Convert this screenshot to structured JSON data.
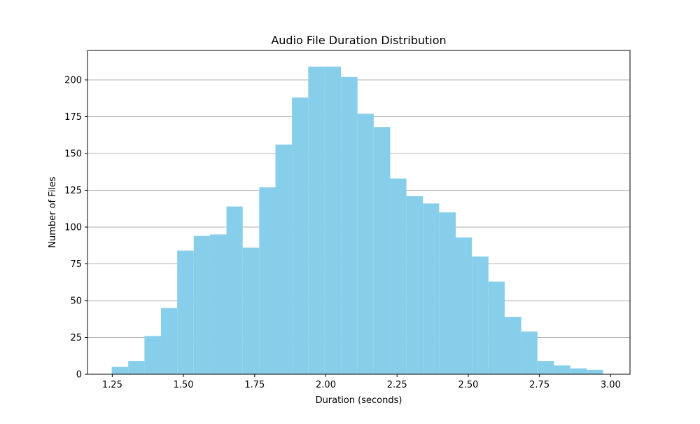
{
  "chart_data": {
    "type": "bar",
    "title": "Audio File Duration Distribution",
    "xlabel": "Duration (seconds)",
    "ylabel": "Number of Files",
    "xlim": [
      1.163,
      3.068
    ],
    "ylim": [
      0,
      220
    ],
    "x_ticks": [
      1.25,
      1.5,
      1.75,
      2.0,
      2.25,
      2.5,
      2.75,
      3.0
    ],
    "x_tick_labels": [
      "1.25",
      "1.50",
      "1.75",
      "2.00",
      "2.25",
      "2.50",
      "2.75",
      "3.00"
    ],
    "y_ticks": [
      0,
      25,
      50,
      75,
      100,
      125,
      150,
      175,
      200
    ],
    "y_tick_labels": [
      "0",
      "25",
      "50",
      "75",
      "100",
      "125",
      "150",
      "175",
      "200"
    ],
    "grid": "horizontal",
    "bar_color": "#87CEEB",
    "bins": [
      {
        "x0": 1.248,
        "x1": 1.306,
        "count": 5
      },
      {
        "x0": 1.306,
        "x1": 1.363,
        "count": 9
      },
      {
        "x0": 1.363,
        "x1": 1.421,
        "count": 26
      },
      {
        "x0": 1.421,
        "x1": 1.478,
        "count": 45
      },
      {
        "x0": 1.478,
        "x1": 1.536,
        "count": 84
      },
      {
        "x0": 1.536,
        "x1": 1.593,
        "count": 94
      },
      {
        "x0": 1.593,
        "x1": 1.651,
        "count": 95
      },
      {
        "x0": 1.651,
        "x1": 1.708,
        "count": 114
      },
      {
        "x0": 1.708,
        "x1": 1.766,
        "count": 86
      },
      {
        "x0": 1.766,
        "x1": 1.823,
        "count": 127
      },
      {
        "x0": 1.823,
        "x1": 1.881,
        "count": 156
      },
      {
        "x0": 1.881,
        "x1": 1.938,
        "count": 188
      },
      {
        "x0": 1.938,
        "x1": 1.996,
        "count": 209
      },
      {
        "x0": 1.996,
        "x1": 2.053,
        "count": 209
      },
      {
        "x0": 2.053,
        "x1": 2.111,
        "count": 202
      },
      {
        "x0": 2.111,
        "x1": 2.168,
        "count": 177
      },
      {
        "x0": 2.168,
        "x1": 2.226,
        "count": 168
      },
      {
        "x0": 2.226,
        "x1": 2.283,
        "count": 133
      },
      {
        "x0": 2.283,
        "x1": 2.341,
        "count": 121
      },
      {
        "x0": 2.341,
        "x1": 2.398,
        "count": 116
      },
      {
        "x0": 2.398,
        "x1": 2.456,
        "count": 110
      },
      {
        "x0": 2.456,
        "x1": 2.513,
        "count": 93
      },
      {
        "x0": 2.513,
        "x1": 2.571,
        "count": 80
      },
      {
        "x0": 2.571,
        "x1": 2.628,
        "count": 63
      },
      {
        "x0": 2.628,
        "x1": 2.686,
        "count": 39
      },
      {
        "x0": 2.686,
        "x1": 2.743,
        "count": 29
      },
      {
        "x0": 2.743,
        "x1": 2.801,
        "count": 9
      },
      {
        "x0": 2.801,
        "x1": 2.858,
        "count": 6
      },
      {
        "x0": 2.858,
        "x1": 2.916,
        "count": 4
      },
      {
        "x0": 2.916,
        "x1": 2.973,
        "count": 3
      }
    ]
  }
}
